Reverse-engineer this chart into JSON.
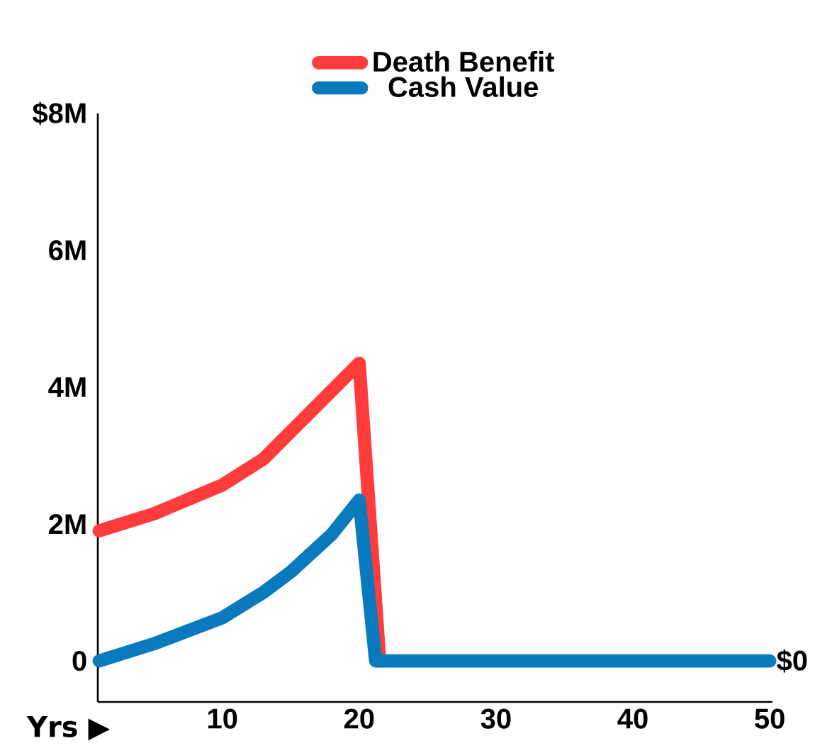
{
  "chart_data": {
    "type": "line",
    "xlabel": "Yrs ▶",
    "xlim": [
      0.9,
      50.2
    ],
    "xticks": [
      10,
      20,
      30,
      40,
      50
    ],
    "ylim": [
      -0.6,
      8
    ],
    "yticks": [
      {
        "value": 0,
        "label": "0"
      },
      {
        "value": 2,
        "label": "2M"
      },
      {
        "value": 4,
        "label": "4M"
      },
      {
        "value": 6,
        "label": "6M"
      },
      {
        "value": 8,
        "label": "$8M"
      }
    ],
    "series": [
      {
        "name": "Death Benefit",
        "color": "#ff3b3b",
        "x": [
          1,
          5,
          10,
          13,
          15,
          18,
          20,
          21.5
        ],
        "values": [
          1.9,
          2.15,
          2.57,
          2.95,
          3.35,
          3.95,
          4.35,
          0
        ]
      },
      {
        "name": "Cash Value",
        "color": "#0a7abf",
        "x": [
          1,
          5,
          10,
          13,
          15,
          18,
          20,
          21.2,
          50
        ],
        "values": [
          0,
          0.25,
          0.63,
          1.0,
          1.3,
          1.85,
          2.35,
          0,
          0
        ]
      }
    ],
    "annotations": [
      {
        "text": "$0",
        "x": 50,
        "y": 0
      }
    ],
    "grid": false,
    "legend": "top",
    "line_style": "solid",
    "marker": "none"
  }
}
